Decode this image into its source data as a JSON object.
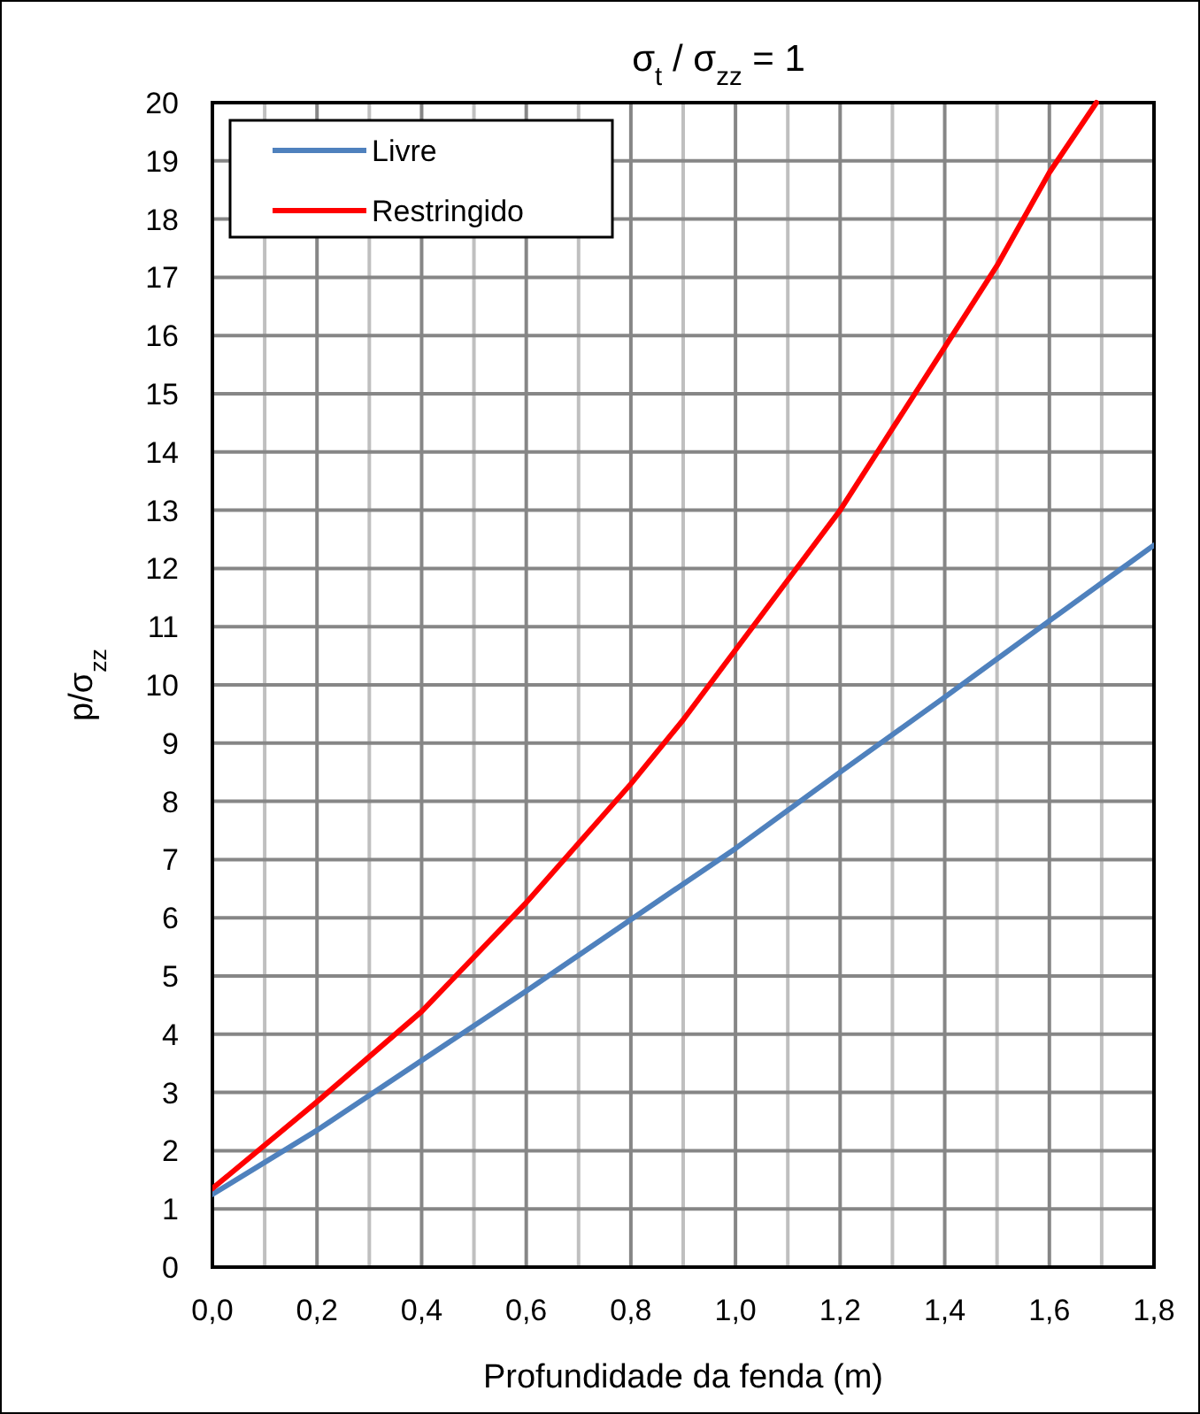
{
  "chart_data": {
    "type": "line",
    "title": "σ$_{t}$ / σ$_{zz}$ = 1",
    "xlabel": "Profundidade da fenda (m)",
    "ylabel": "p/σ$_{zz}$",
    "series": [
      {
        "name": "Livre",
        "color": "#4f81bd",
        "x": [
          0,
          0.2,
          0.4,
          0.6,
          0.8,
          1.0,
          1.2,
          1.4,
          1.6,
          1.8
        ],
        "values": [
          1.25,
          2.35,
          3.55,
          4.74,
          5.97,
          7.19,
          8.5,
          9.79,
          11.1,
          12.4
        ]
      },
      {
        "name": "Restringido",
        "color": "#ff0000",
        "x": [
          0,
          0.2,
          0.4,
          0.6,
          0.8,
          0.9,
          1.0,
          1.1,
          1.2,
          1.3,
          1.4,
          1.5,
          1.6,
          1.69
        ],
        "values": [
          1.35,
          2.84,
          4.39,
          6.26,
          8.3,
          9.4,
          10.6,
          11.8,
          13.0,
          14.4,
          15.8,
          17.2,
          18.8,
          20
        ]
      }
    ],
    "xlim": [
      0,
      1.8
    ],
    "xticks": [
      {
        "value": 0,
        "label": "0,0"
      },
      {
        "value": 0.1,
        "label": null
      },
      {
        "value": 0.2,
        "label": "0,2"
      },
      {
        "value": 0.3,
        "label": null
      },
      {
        "value": 0.4,
        "label": "0,4"
      },
      {
        "value": 0.5,
        "label": null
      },
      {
        "value": 0.6,
        "label": "0,6"
      },
      {
        "value": 0.7,
        "label": null
      },
      {
        "value": 0.8,
        "label": "0,8"
      },
      {
        "value": 0.9,
        "label": null
      },
      {
        "value": 1.0,
        "label": "1,0"
      },
      {
        "value": 1.1,
        "label": null
      },
      {
        "value": 1.2,
        "label": "1,2"
      },
      {
        "value": 1.3,
        "label": null
      },
      {
        "value": 1.4,
        "label": "1,4"
      },
      {
        "value": 1.5,
        "label": null
      },
      {
        "value": 1.6,
        "label": "1,6"
      },
      {
        "value": 1.7,
        "label": null
      },
      {
        "value": 1.8,
        "label": "1,8"
      }
    ],
    "ylim": [
      0,
      20
    ],
    "yticks": [
      0,
      1,
      2,
      3,
      4,
      5,
      6,
      7,
      8,
      9,
      10,
      11,
      12,
      13,
      14,
      15,
      16,
      17,
      18,
      19,
      20
    ],
    "grid": true,
    "legend": "top left",
    "marker": "none",
    "line_style": "solid"
  }
}
